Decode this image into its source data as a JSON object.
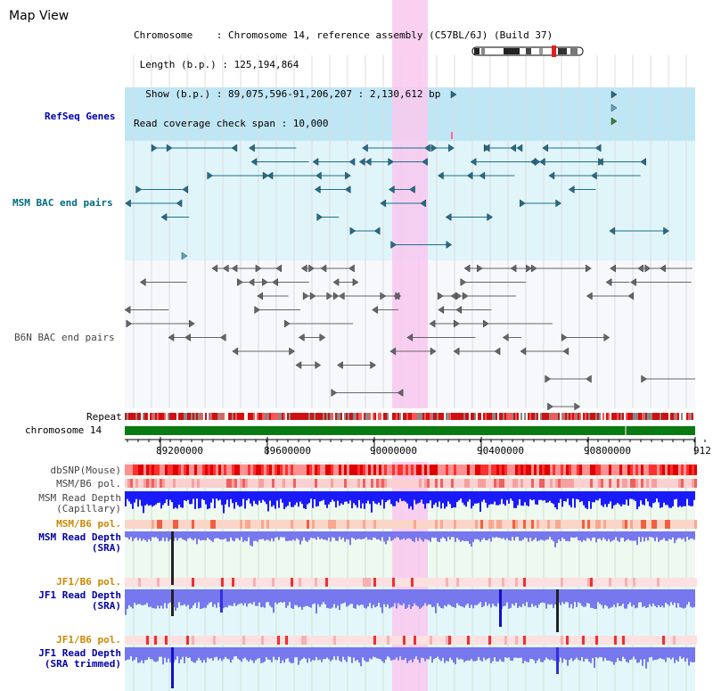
{
  "header": {
    "title": "Map View",
    "info": [
      "Chromosome    : Chromosome 14, reference assembly (C57BL/6J) (Build 37)",
      " Length (b.p.) : 125,194,864",
      "  Show (b.p.) : 89,075,596-91,206,207 : 2,130,612 bp",
      "Read coverage check span : 10,000"
    ]
  },
  "tracks": {
    "refseq": "RefSeq Genes",
    "msm_bac": "MSM BAC end pairs",
    "b6n_bac": "B6N BAC end pairs",
    "repeat": "Repeat",
    "chromosome": "chromosome 14",
    "dbsnp": "dbSNP(Mouse)",
    "msm_b6_pol_1": "MSM/B6 pol.",
    "msm_depth_cap_1": "MSM Read Depth",
    "msm_depth_cap_2": "(Capillary)",
    "msm_b6_pol_2": "MSM/B6 pol.",
    "msm_depth_sra_1": "MSM Read Depth",
    "msm_depth_sra_2": "(SRA)",
    "jf1_pol_1": "JF1/B6 pol.",
    "jf1_depth_1": "JF1 Read Depth",
    "jf1_depth_2": "(SRA)",
    "jf1_pol_2": "JF1/B6 pol.",
    "jf1_trim_1": "JF1 Read Depth",
    "jf1_trim_2": "(SRA trimmed)"
  },
  "axis": {
    "ticks": [
      "89200000",
      "89600000",
      "90000000",
      "90400000",
      "90800000",
      "912"
    ]
  },
  "colors": {
    "refseq_bg": "#bfe6f5",
    "msm_bg": "#dff5fa",
    "highlight": "#f9c8ef",
    "bac_teal": "#1e6f8a",
    "bac_gray": "#666666",
    "chromosome": "#0a7a12",
    "depth_blue": "#1a1aff",
    "depth_purple": "#7777ee"
  }
}
